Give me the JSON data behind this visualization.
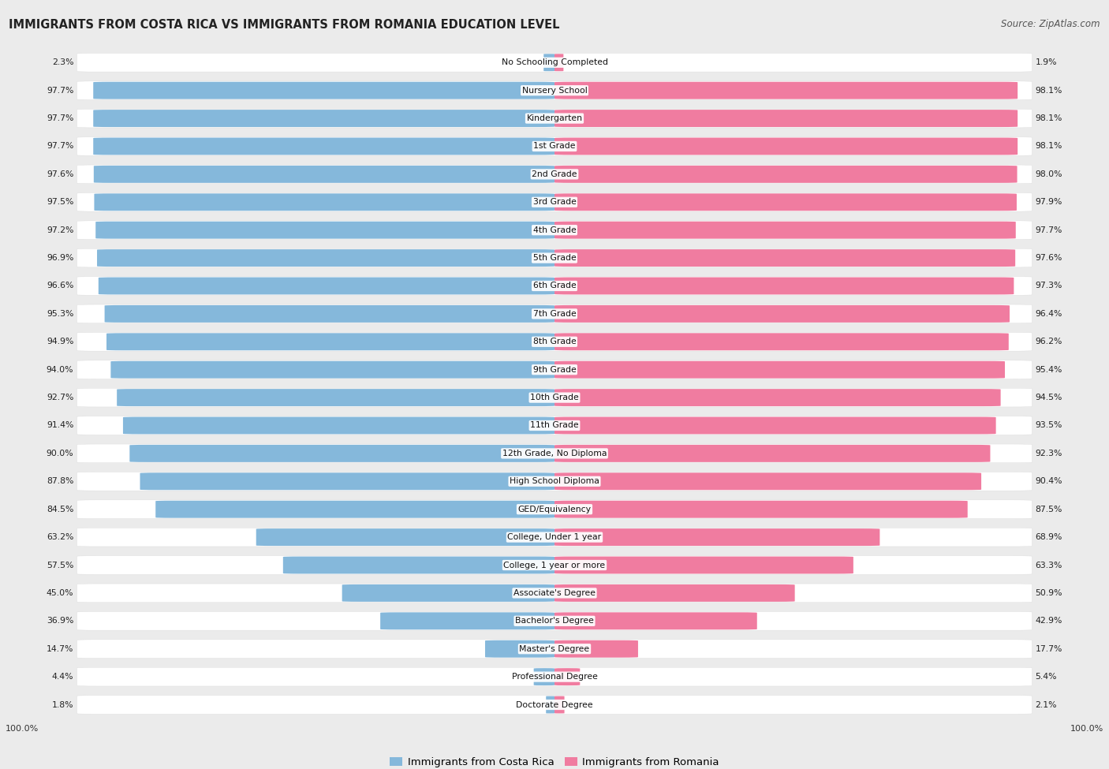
{
  "title": "IMMIGRANTS FROM COSTA RICA VS IMMIGRANTS FROM ROMANIA EDUCATION LEVEL",
  "source": "Source: ZipAtlas.com",
  "categories": [
    "No Schooling Completed",
    "Nursery School",
    "Kindergarten",
    "1st Grade",
    "2nd Grade",
    "3rd Grade",
    "4th Grade",
    "5th Grade",
    "6th Grade",
    "7th Grade",
    "8th Grade",
    "9th Grade",
    "10th Grade",
    "11th Grade",
    "12th Grade, No Diploma",
    "High School Diploma",
    "GED/Equivalency",
    "College, Under 1 year",
    "College, 1 year or more",
    "Associate's Degree",
    "Bachelor's Degree",
    "Master's Degree",
    "Professional Degree",
    "Doctorate Degree"
  ],
  "costa_rica": [
    2.3,
    97.7,
    97.7,
    97.7,
    97.6,
    97.5,
    97.2,
    96.9,
    96.6,
    95.3,
    94.9,
    94.0,
    92.7,
    91.4,
    90.0,
    87.8,
    84.5,
    63.2,
    57.5,
    45.0,
    36.9,
    14.7,
    4.4,
    1.8
  ],
  "romania": [
    1.9,
    98.1,
    98.1,
    98.1,
    98.0,
    97.9,
    97.7,
    97.6,
    97.3,
    96.4,
    96.2,
    95.4,
    94.5,
    93.5,
    92.3,
    90.4,
    87.5,
    68.9,
    63.3,
    50.9,
    42.9,
    17.7,
    5.4,
    2.1
  ],
  "costa_rica_color": "#85b8db",
  "romania_color": "#f07ca0",
  "background_color": "#ebebeb",
  "row_bg_color": "#ffffff",
  "legend_costa_rica": "Immigrants from Costa Rica",
  "legend_romania": "Immigrants from Romania"
}
